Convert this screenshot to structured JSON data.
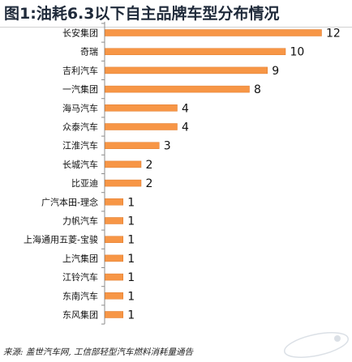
{
  "chart_data": {
    "type": "bar",
    "orientation": "horizontal",
    "title": "图1:油耗6.3以下自主品牌车型分布情况",
    "categories": [
      "长安集团",
      "奇瑞",
      "吉利汽车",
      "一汽集团",
      "海马汽车",
      "众泰汽车",
      "江淮汽车",
      "长城汽车",
      "比亚迪",
      "广汽本田-理念",
      "力帆汽车",
      "上海通用五菱-宝骏",
      "上汽集团",
      "江铃汽车",
      "东南汽车",
      "东风集团"
    ],
    "values": [
      12,
      10,
      9,
      8,
      4,
      4,
      3,
      2,
      2,
      1,
      1,
      1,
      1,
      1,
      1,
      1
    ],
    "data_labels": true,
    "xlim": [
      0,
      12
    ],
    "grid": false,
    "legend": "none",
    "bar_color": "#f79646",
    "source": "来源: 盖世汽车网, 工信部轻型汽车燃料消耗量通告"
  }
}
